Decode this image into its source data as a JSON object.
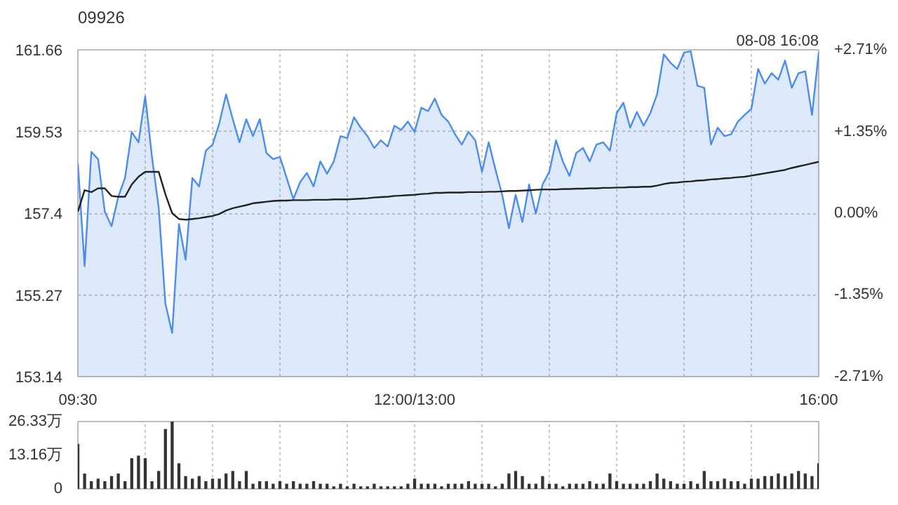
{
  "chart_data": [
    {
      "type": "area",
      "title": "09926",
      "annotations": [
        "08-08 16:08"
      ],
      "categories": [
        "09:30",
        null,
        null,
        null,
        null,
        null,
        null,
        null,
        null,
        null,
        null,
        null,
        null,
        null,
        null,
        null,
        null,
        null,
        null,
        null,
        null,
        null,
        null,
        null,
        null,
        null,
        null,
        null,
        null,
        null,
        null,
        null,
        null,
        null,
        null,
        null,
        null,
        null,
        null,
        null,
        null,
        null,
        null,
        null,
        null,
        null,
        null,
        null,
        null,
        null,
        "12:00/13:00",
        null,
        null,
        null,
        null,
        null,
        null,
        null,
        null,
        null,
        null,
        null,
        null,
        null,
        null,
        null,
        null,
        null,
        null,
        null,
        null,
        null,
        null,
        null,
        null,
        null,
        null,
        null,
        null,
        null,
        null,
        null,
        null,
        null,
        null,
        null,
        null,
        null,
        null,
        null,
        null,
        null,
        null,
        null,
        null,
        null,
        null,
        null,
        null,
        null,
        null,
        null,
        null,
        null,
        null,
        null,
        null,
        null,
        null,
        null,
        "16:00"
      ],
      "ylim": [
        153.14,
        161.66
      ],
      "yticks": [
        153.14,
        155.27,
        157.4,
        159.53,
        161.66
      ],
      "y2lim": [
        -2.71,
        2.71
      ],
      "y2ticks": [
        {
          "value": -2.71,
          "label": "-2.71%"
        },
        {
          "value": -1.35,
          "label": "-1.35%"
        },
        {
          "value": 0,
          "label": "0.00%"
        },
        {
          "value": 1.35,
          "label": "+1.35%"
        },
        {
          "value": 2.71,
          "label": "+2.71%"
        }
      ],
      "grid": true,
      "series": [
        {
          "type": "area",
          "color": "#4a8cf0",
          "values": [
            158.7,
            156.02,
            159.0,
            158.81,
            157.44,
            157.06,
            157.83,
            158.32,
            159.52,
            159.25,
            160.45,
            158.87,
            157.55,
            155.04,
            154.28,
            157.12,
            156.19,
            158.32,
            158.1,
            159.03,
            159.19,
            159.74,
            160.5,
            159.85,
            159.25,
            159.85,
            159.41,
            159.85,
            158.97,
            158.81,
            158.87,
            158.32,
            157.77,
            158.21,
            158.45,
            158.1,
            158.75,
            158.43,
            158.75,
            159.41,
            159.36,
            159.9,
            159.63,
            159.41,
            159.1,
            159.3,
            159.14,
            159.68,
            159.57,
            159.79,
            159.52,
            160.15,
            160.06,
            160.39,
            159.96,
            159.79,
            159.46,
            159.19,
            159.52,
            159.3,
            158.48,
            159.25,
            158.54,
            157.88,
            157.01,
            157.88,
            157.17,
            158.15,
            157.39,
            158.15,
            158.48,
            159.3,
            158.75,
            158.37,
            158.97,
            159.1,
            158.75,
            159.19,
            159.25,
            159.03,
            160.01,
            160.28,
            159.63,
            160.04,
            159.68,
            160.01,
            160.5,
            161.54,
            161.32,
            161.16,
            161.59,
            161.62,
            160.72,
            160.67,
            159.19,
            159.63,
            159.41,
            159.46,
            159.79,
            159.96,
            160.12,
            161.16,
            160.78,
            161.05,
            160.88,
            161.38,
            160.67,
            161.05,
            161.1,
            159.96,
            161.59
          ]
        },
        {
          "type": "line",
          "color": "#222222",
          "values": [
            157.44,
            158.0,
            157.95,
            158.05,
            158.05,
            157.85,
            157.83,
            157.83,
            158.15,
            158.35,
            158.48,
            158.48,
            158.48,
            157.89,
            157.4,
            157.25,
            157.23,
            157.25,
            157.27,
            157.3,
            157.33,
            157.38,
            157.47,
            157.53,
            157.57,
            157.61,
            157.66,
            157.68,
            157.7,
            157.72,
            157.73,
            157.73,
            157.74,
            157.74,
            157.74,
            157.75,
            157.75,
            157.75,
            157.76,
            157.76,
            157.76,
            157.77,
            157.78,
            157.79,
            157.81,
            157.82,
            157.83,
            157.85,
            157.86,
            157.87,
            157.88,
            157.9,
            157.91,
            157.93,
            157.93,
            157.94,
            157.94,
            157.94,
            157.95,
            157.95,
            157.95,
            157.96,
            157.96,
            157.97,
            157.98,
            157.98,
            157.99,
            158.0,
            158.01,
            158.02,
            158.02,
            158.02,
            158.03,
            158.03,
            158.04,
            158.04,
            158.05,
            158.05,
            158.06,
            158.06,
            158.07,
            158.07,
            158.08,
            158.08,
            158.09,
            158.09,
            158.12,
            158.16,
            158.19,
            158.2,
            158.22,
            158.23,
            158.25,
            158.26,
            158.28,
            158.29,
            158.31,
            158.32,
            158.34,
            158.35,
            158.38,
            158.41,
            158.44,
            158.47,
            158.5,
            158.53,
            158.58,
            158.62,
            158.66,
            158.7,
            158.74
          ]
        }
      ]
    },
    {
      "type": "bar",
      "tick_labels": "y",
      "categories": [
        null,
        null,
        null,
        null,
        null,
        null,
        null,
        null,
        null,
        null,
        null,
        null,
        null,
        null,
        null,
        null,
        null,
        null,
        null,
        null,
        null,
        null,
        null,
        null,
        null,
        null,
        null,
        null,
        null,
        null,
        null,
        null,
        null,
        null,
        null,
        null,
        null,
        null,
        null,
        null,
        null,
        null,
        null,
        null,
        null,
        null,
        null,
        null,
        null,
        null,
        null,
        null,
        null,
        null,
        null,
        null,
        null,
        null,
        null,
        null,
        null,
        null,
        null,
        null,
        null,
        null,
        null,
        null,
        null,
        null,
        null,
        null,
        null,
        null,
        null,
        null,
        null,
        null,
        null,
        null,
        null,
        null,
        null,
        null,
        null,
        null,
        null,
        null,
        null,
        null,
        null,
        null,
        null,
        null,
        null,
        null,
        null,
        null,
        null,
        null,
        null,
        null,
        null,
        null,
        null,
        null,
        null,
        null,
        null,
        null,
        null
      ],
      "ylim": [
        0,
        26.33
      ],
      "yticks": [
        0,
        {
          "value": 13.16,
          "label": "13.16万"
        },
        {
          "value": 26.33,
          "label": "26.33万"
        }
      ],
      "grid": "x",
      "series": [
        {
          "color": "#333333",
          "values": [
            17.6,
            6,
            3,
            4,
            3,
            5,
            6,
            3,
            12,
            13,
            12,
            3,
            7,
            23.4,
            26.3,
            10,
            5,
            4,
            5,
            3,
            4,
            4,
            6,
            7,
            3,
            7,
            2,
            3,
            3,
            2,
            3,
            2,
            3,
            2,
            2,
            3,
            2,
            2,
            1,
            2,
            1,
            2,
            1,
            1,
            2,
            1,
            1,
            1,
            1,
            2,
            4,
            2,
            2,
            2,
            1,
            2,
            2,
            2,
            3,
            2,
            2,
            2,
            1,
            2,
            6,
            7,
            5,
            2,
            2,
            5,
            2,
            2,
            1,
            2,
            2,
            2,
            3,
            2,
            2,
            6,
            3,
            2,
            2,
            2,
            2,
            3,
            6,
            4,
            3,
            2,
            2,
            3,
            2,
            7,
            3,
            3,
            4,
            3,
            3,
            2,
            4,
            4,
            5,
            5,
            6,
            5,
            6,
            7,
            6,
            5,
            10
          ]
        }
      ]
    }
  ]
}
